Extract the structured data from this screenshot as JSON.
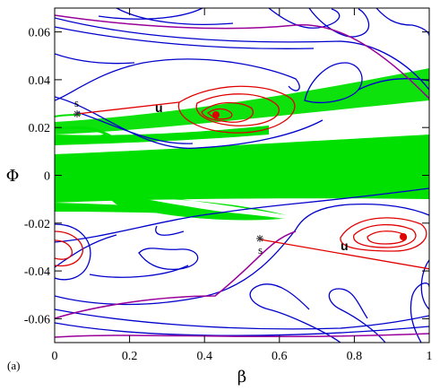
{
  "panel_label": "(a)",
  "chart_data": {
    "type": "phase-portrait",
    "xlabel": "β",
    "ylabel": "Φ",
    "xlim": [
      0,
      1
    ],
    "ylim": [
      -0.07,
      0.07
    ],
    "x_ticks": [
      0,
      0.2,
      0.4,
      0.6,
      0.8,
      1
    ],
    "x_tick_labels": [
      "0",
      "0.2",
      "0.4",
      "0.6",
      "0.8",
      "1"
    ],
    "y_ticks": [
      0.06,
      0.04,
      0.02,
      0,
      -0.02,
      -0.04,
      -0.06
    ],
    "y_tick_labels": [
      "0.06",
      "0.04",
      "0.02",
      "0",
      "-0.02",
      "-0.04",
      "-0.06"
    ],
    "colors": {
      "chaotic_band": "#00e000",
      "regular_orbits": "#0000cc",
      "separatrix": "#990099",
      "manifolds": "#e00000",
      "saddle_marker": "#333333"
    },
    "annotations": [
      {
        "label": "s",
        "x": 0.065,
        "y": 0.026
      },
      {
        "label": "u",
        "x": 0.27,
        "y": 0.022
      },
      {
        "label": "s",
        "x": 0.56,
        "y": -0.026
      },
      {
        "label": "u",
        "x": 0.78,
        "y": -0.031
      }
    ],
    "saddle_points": [
      {
        "x": 0.065,
        "y": 0.026
      },
      {
        "x": 0.56,
        "y": -0.026
      }
    ],
    "island_centers": [
      {
        "x": 0.44,
        "y": 0.025
      },
      {
        "x": 0.94,
        "y": -0.026
      }
    ]
  }
}
